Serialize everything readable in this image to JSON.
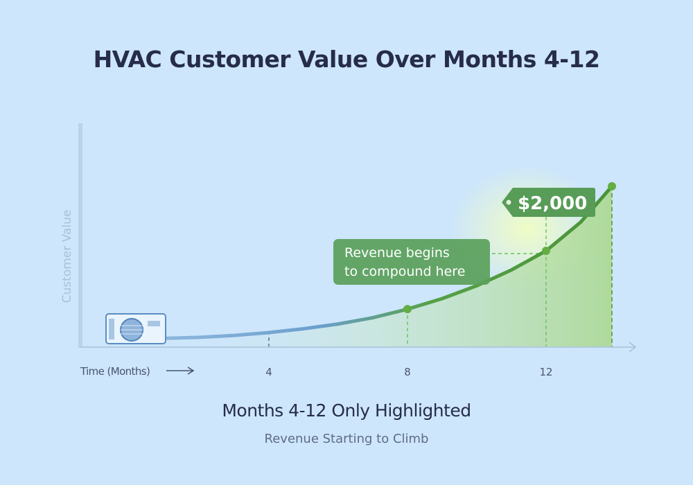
{
  "title": "HVAC Customer Value Over Months 4-12",
  "subtitle": "Months 4-12 Only Highlighted",
  "caption": "Revenue  Starting to Climb",
  "chart_data": {
    "type": "area",
    "title": "HVAC Customer Value Over Months 4-12",
    "xlabel": "Time (Months)",
    "ylabel": "Customer Value",
    "x_ticks": [
      "4",
      "8",
      "12"
    ],
    "xlim": [
      -1.5,
      15
    ],
    "ylim": [
      0,
      3600
    ],
    "grid": false,
    "series": [
      {
        "x": [
          1,
          2,
          3,
          4,
          5,
          6,
          7,
          8,
          9,
          10,
          11,
          12,
          13,
          13.9
        ],
        "y": [
          170,
          190,
          230,
          290,
          370,
          470,
          600,
          780,
          1000,
          1270,
          1600,
          2000,
          2600,
          3350
        ]
      }
    ],
    "markers": [
      8,
      12,
      13.9
    ],
    "annotations": [
      {
        "text": "Revenue begins to compound here",
        "line1": "Revenue begins",
        "line2": "to compound here",
        "x": 8
      },
      {
        "text": "$2,000",
        "x": 12,
        "y": 2000
      }
    ],
    "colors": {
      "curve_start": "#7aaad6",
      "curve_end": "#4f9a3c",
      "callout": "#4f9a56",
      "fill": "#a9d88a",
      "background": "#cde6fb"
    },
    "icon": "air-conditioner-icon"
  }
}
